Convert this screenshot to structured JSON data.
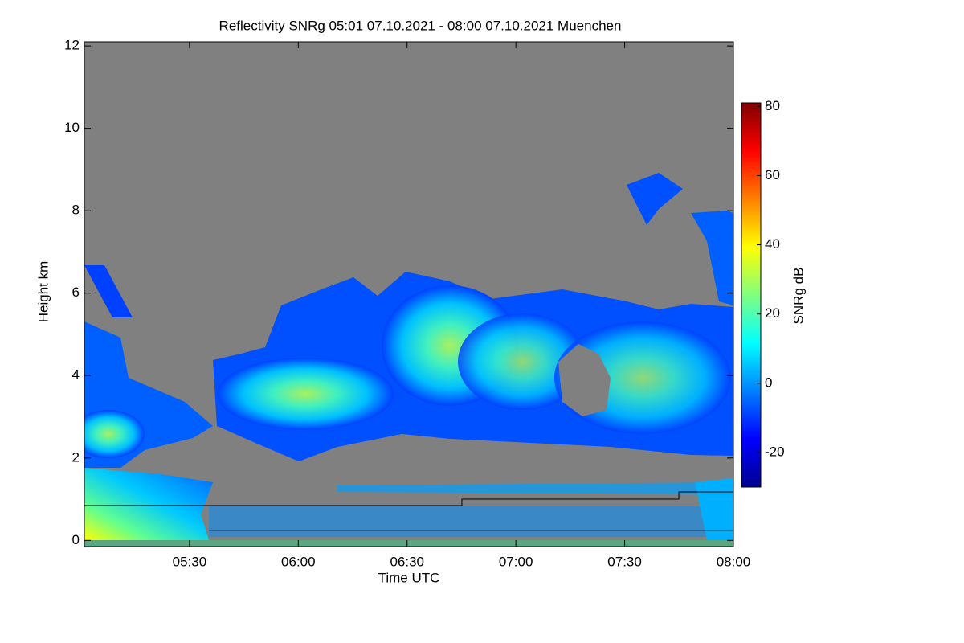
{
  "chart_data": {
    "type": "heatmap",
    "title": "Reflectivity SNRg   05:01 07.10.2021 - 08:00 07.10.2021 Muenchen",
    "x_label": "Time UTC",
    "y_label": "Height km",
    "xlim": [
      5.0167,
      8.0
    ],
    "xticks": [
      {
        "value": 5.5,
        "label": "05:30"
      },
      {
        "value": 6.0,
        "label": "06:00"
      },
      {
        "value": 6.5,
        "label": "06:30"
      },
      {
        "value": 7.0,
        "label": "07:00"
      },
      {
        "value": 7.5,
        "label": "07:30"
      },
      {
        "value": 8.0,
        "label": "08:00"
      }
    ],
    "ylim": [
      -0.15,
      12.1
    ],
    "yticks": [
      0,
      2,
      4,
      6,
      8,
      10,
      12
    ],
    "colorbar": {
      "label": "SNRg dB",
      "clim": [
        -30,
        81
      ],
      "ticks": [
        -20,
        0,
        20,
        40,
        60,
        80
      ],
      "colormap": [
        "#00008f",
        "#0000ff",
        "#0080ff",
        "#00ffff",
        "#80ff80",
        "#ffff00",
        "#ff8000",
        "#ff0000",
        "#800000"
      ]
    },
    "background_color": "#808080"
  }
}
